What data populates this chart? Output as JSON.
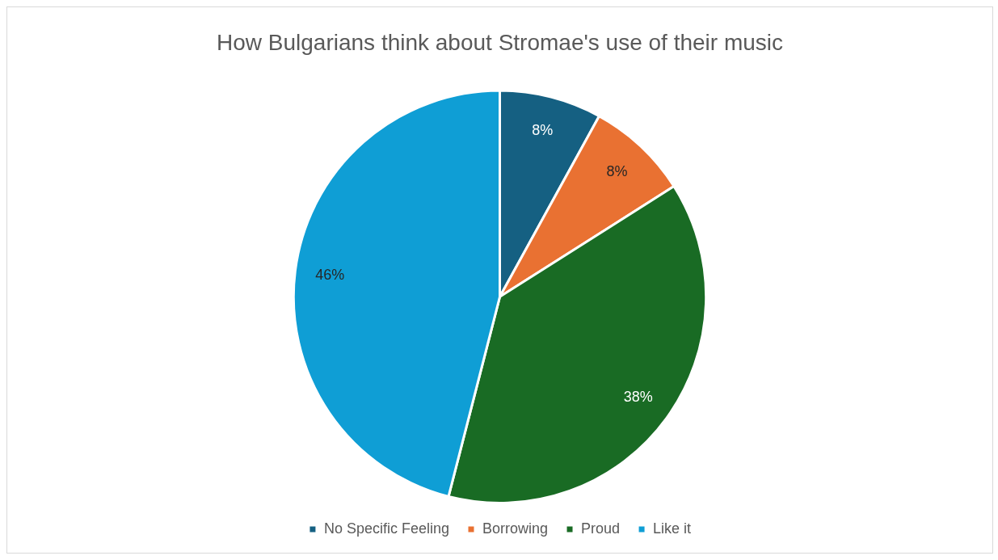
{
  "chart_data": {
    "type": "pie",
    "title": "How Bulgarians think about Stromae's use of their music",
    "categories": [
      "No Specific Feeling",
      "Borrowing",
      "Proud",
      "Like it"
    ],
    "values": [
      8,
      8,
      38,
      46
    ],
    "colors": [
      "#156082",
      "#e97132",
      "#196b24",
      "#0f9ed5"
    ],
    "value_labels": [
      "8%",
      "8%",
      "38%",
      "46%"
    ],
    "legend": "bottom"
  }
}
